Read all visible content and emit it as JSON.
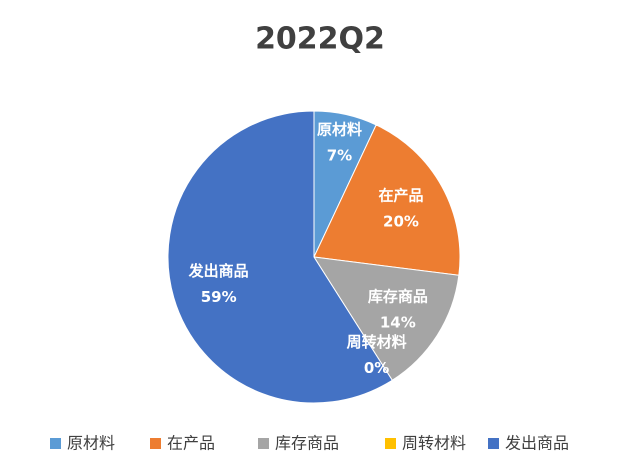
{
  "chart_data": {
    "type": "pie",
    "title": "2022Q2",
    "categories": [
      "原材料",
      "在产品",
      "库存商品",
      "周转材料",
      "发出商品"
    ],
    "values": [
      7,
      20,
      14,
      0,
      59
    ],
    "value_labels": [
      "7%",
      "20%",
      "14%",
      "0%",
      "59%"
    ],
    "colors": [
      "#5b9bd5",
      "#ed7d31",
      "#a5a5a5",
      "#ffc000",
      "#4472c4"
    ],
    "legend": "bottom"
  }
}
